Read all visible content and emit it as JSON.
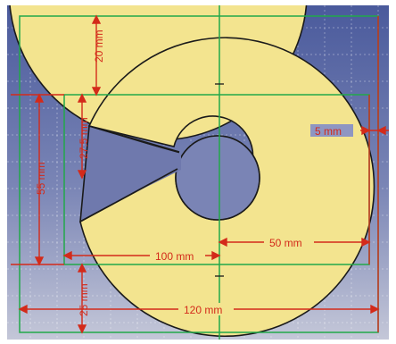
{
  "sketch": {
    "colors": {
      "background_top": "#4a5a9c",
      "background_bottom": "#c4c7d8",
      "face": "#f3e48f",
      "outline": "#1a1a1a",
      "constraint": "#22a84a",
      "dimension": "#d32a1a",
      "grid": "#ffffff"
    },
    "dimensions": {
      "top_margin": "20 mm",
      "left_height": "55 mm",
      "slot_offset": "27.5 mm",
      "right_gap": "5 mm",
      "radius": "50 mm",
      "width_inner": "100 mm",
      "width_outer": "120 mm",
      "bottom_margin": "25 mm"
    }
  }
}
